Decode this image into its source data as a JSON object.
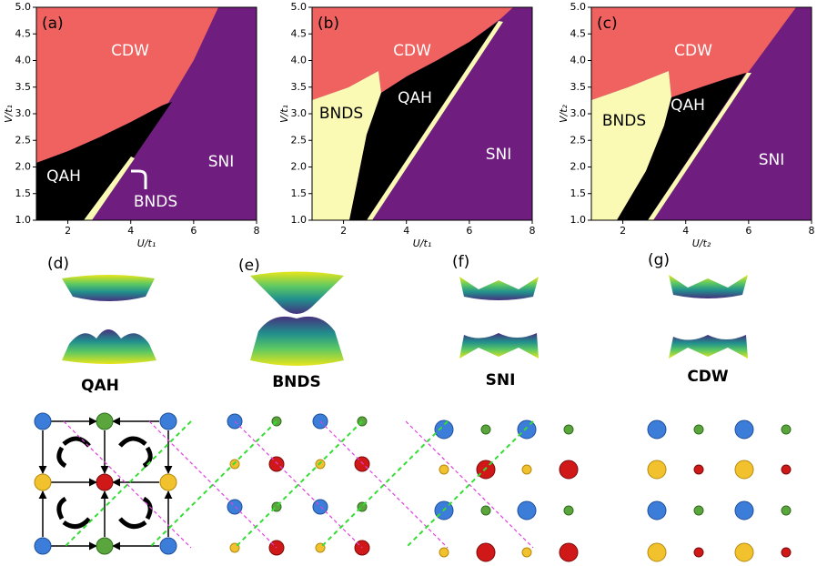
{
  "axes": {
    "xlim": [
      1,
      8
    ],
    "ylim": [
      1,
      5
    ],
    "xticks": [
      2,
      4,
      6,
      8
    ],
    "yticks": [
      {
        "value": 1,
        "label": "1.0"
      },
      {
        "value": 1.5,
        "label": "1.5"
      },
      {
        "value": 2,
        "label": "2.0"
      },
      {
        "value": 2.5,
        "label": "2.5"
      },
      {
        "value": 3,
        "label": "3.0"
      },
      {
        "value": 3.5,
        "label": "3.5"
      },
      {
        "value": 4,
        "label": "4.0"
      },
      {
        "value": 4.5,
        "label": "4.5"
      },
      {
        "value": 5,
        "label": "5.0"
      }
    ]
  },
  "panels": [
    {
      "label": "(a)",
      "x_label": "U/t₁",
      "y_label": "V/t₁",
      "regions": [
        "CDW",
        "QAH",
        "BNDS",
        "SNI"
      ]
    },
    {
      "label": "(b)",
      "x_label": "U/t₁",
      "y_label": "V/t₁",
      "regions": [
        "CDW",
        "BNDS",
        "QAH",
        "SNI"
      ]
    },
    {
      "label": "(c)",
      "x_label": "U/t₂",
      "y_label": "V/t₂",
      "regions": [
        "CDW",
        "BNDS",
        "QAH",
        "SNI"
      ]
    }
  ],
  "bottom": [
    {
      "label": "(d)",
      "phase": "QAH"
    },
    {
      "label": "(e)",
      "phase": "BNDS"
    },
    {
      "label": "(f)",
      "phase": "SNI"
    },
    {
      "label": "(g)",
      "phase": "CDW"
    }
  ]
}
